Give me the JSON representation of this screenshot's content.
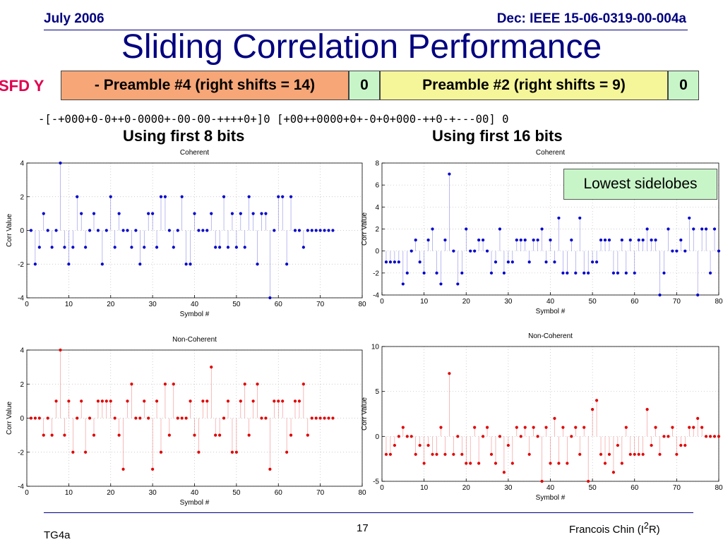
{
  "header": {
    "date": "July 2006",
    "doc": "Dec: IEEE 15-06-0319-00-004a"
  },
  "title": "Sliding Correlation Performance",
  "frame": {
    "sfd_label": "SFD Y",
    "segments": [
      "- Preamble #4 (right shifts = 14)",
      "0",
      "Preamble #2 (right shifts = 9)",
      "0"
    ],
    "sequence": "-[-+000+0-0++0-0000+-00-00-++++0+]0 [+00++0000+0+-0+0+000-++0-+---00] 0"
  },
  "subtitles": {
    "left": "Using first 8 bits",
    "right": "Using first 16 bits"
  },
  "callout": "Lowest sidelobes",
  "footer": {
    "left": "TG4a",
    "page": "17",
    "author_main": "Francois Chin (I",
    "author_sup": "2",
    "author_end": "R)"
  },
  "colors": {
    "coherent": "#0000cc",
    "noncoherent": "#e00000",
    "title": "#000080",
    "sfd": "#e0004f"
  },
  "chart_data": [
    {
      "type": "scatter",
      "title": "Coherent",
      "xlabel": "Symbol #",
      "ylabel": "Corr Value",
      "xlim": [
        0,
        80
      ],
      "ylim": [
        -4,
        4
      ],
      "xticks": [
        0,
        10,
        20,
        30,
        40,
        50,
        60,
        70,
        80
      ],
      "yticks": [
        -4,
        -2,
        0,
        2,
        4
      ],
      "grid": true,
      "x": [
        1,
        2,
        3,
        4,
        5,
        6,
        7,
        8,
        9,
        10,
        11,
        12,
        13,
        14,
        15,
        16,
        17,
        18,
        19,
        20,
        21,
        22,
        23,
        24,
        25,
        26,
        27,
        28,
        29,
        30,
        31,
        32,
        33,
        34,
        35,
        36,
        37,
        38,
        39,
        40,
        41,
        42,
        43,
        44,
        45,
        46,
        47,
        48,
        49,
        50,
        51,
        52,
        53,
        54,
        55,
        56,
        57,
        58,
        59,
        60,
        61,
        62,
        63,
        64,
        65,
        66,
        67,
        68,
        69,
        70,
        71,
        72,
        73
      ],
      "values": [
        0,
        -2,
        -1,
        1,
        0,
        -1,
        0,
        4,
        -1,
        -2,
        -1,
        2,
        1,
        -1,
        0,
        1,
        0,
        -2,
        0,
        2,
        -1,
        1,
        0,
        0,
        -1,
        0,
        -2,
        -1,
        1,
        1,
        -1,
        2,
        2,
        0,
        -1,
        0,
        2,
        -2,
        -2,
        1,
        0,
        0,
        0,
        1,
        -1,
        -1,
        2,
        -1,
        1,
        -1,
        1,
        -1,
        2,
        1,
        -2,
        1,
        1,
        -4,
        0,
        2,
        2,
        -2,
        2,
        0,
        0,
        -1,
        0,
        0,
        0,
        0,
        0,
        0,
        0
      ]
    },
    {
      "type": "scatter",
      "title": "Coherent",
      "xlabel": "Symbol #",
      "ylabel": "Corr Value",
      "xlim": [
        0,
        80
      ],
      "ylim": [
        -4,
        8
      ],
      "xticks": [
        0,
        10,
        20,
        30,
        40,
        50,
        60,
        70,
        80
      ],
      "yticks": [
        -4,
        -2,
        0,
        2,
        4,
        6,
        8
      ],
      "grid": true,
      "x": [
        1,
        2,
        3,
        4,
        5,
        6,
        7,
        8,
        9,
        10,
        11,
        12,
        13,
        14,
        15,
        16,
        17,
        18,
        19,
        20,
        21,
        22,
        23,
        24,
        25,
        26,
        27,
        28,
        29,
        30,
        31,
        32,
        33,
        34,
        35,
        36,
        37,
        38,
        39,
        40,
        41,
        42,
        43,
        44,
        45,
        46,
        47,
        48,
        49,
        50,
        51,
        52,
        53,
        54,
        55,
        56,
        57,
        58,
        59,
        60,
        61,
        62,
        63,
        64,
        65,
        66,
        67,
        68,
        69,
        70,
        71,
        72,
        73,
        74,
        75,
        76,
        77,
        78,
        79,
        80
      ],
      "values": [
        -1,
        -1,
        -1,
        -1,
        -3,
        -2,
        0,
        1,
        -1,
        -2,
        1,
        2,
        -2,
        -3,
        1,
        7,
        0,
        -3,
        -2,
        2,
        0,
        0,
        1,
        1,
        0,
        -2,
        -1,
        2,
        -2,
        -1,
        -1,
        1,
        1,
        1,
        -1,
        1,
        1,
        2,
        -1,
        1,
        -1,
        3,
        -2,
        -2,
        1,
        -2,
        3,
        -2,
        -2,
        -1,
        -1,
        1,
        1,
        1,
        -2,
        -2,
        1,
        -2,
        1,
        -2,
        1,
        1,
        2,
        1,
        1,
        -4,
        -2,
        2,
        0,
        0,
        1,
        0,
        3,
        2,
        -4,
        2,
        2,
        -2,
        2,
        0
      ]
    },
    {
      "type": "scatter",
      "title": "Non-Coherent",
      "xlabel": "Symbol #",
      "ylabel": "Corr Value",
      "xlim": [
        0,
        80
      ],
      "ylim": [
        -4,
        4
      ],
      "xticks": [
        0,
        10,
        20,
        30,
        40,
        50,
        60,
        70,
        80
      ],
      "yticks": [
        -4,
        -2,
        0,
        2,
        4
      ],
      "grid": true,
      "x": [
        1,
        2,
        3,
        4,
        5,
        6,
        7,
        8,
        9,
        10,
        11,
        12,
        13,
        14,
        15,
        16,
        17,
        18,
        19,
        20,
        21,
        22,
        23,
        24,
        25,
        26,
        27,
        28,
        29,
        30,
        31,
        32,
        33,
        34,
        35,
        36,
        37,
        38,
        39,
        40,
        41,
        42,
        43,
        44,
        45,
        46,
        47,
        48,
        49,
        50,
        51,
        52,
        53,
        54,
        55,
        56,
        57,
        58,
        59,
        60,
        61,
        62,
        63,
        64,
        65,
        66,
        67,
        68,
        69,
        70,
        71,
        72,
        73
      ],
      "values": [
        0,
        0,
        0,
        -1,
        0,
        -1,
        1,
        4,
        -1,
        1,
        -2,
        0,
        1,
        -2,
        0,
        -1,
        1,
        1,
        1,
        1,
        0,
        -1,
        -3,
        1,
        2,
        0,
        0,
        1,
        0,
        -3,
        1,
        -2,
        2,
        -1,
        2,
        0,
        0,
        0,
        1,
        -1,
        -2,
        1,
        1,
        3,
        -1,
        -1,
        0,
        1,
        -2,
        -2,
        1,
        2,
        -1,
        1,
        2,
        0,
        0,
        -3,
        1,
        1,
        1,
        -2,
        -1,
        1,
        1,
        2,
        -1,
        0,
        0,
        0,
        0,
        0,
        0
      ]
    },
    {
      "type": "scatter",
      "title": "Non-Coherent",
      "xlabel": "Symbol #",
      "ylabel": "Corr Value",
      "xlim": [
        0,
        80
      ],
      "ylim": [
        -5,
        10
      ],
      "xticks": [
        0,
        10,
        20,
        30,
        40,
        50,
        60,
        70,
        80
      ],
      "yticks": [
        -5,
        0,
        5,
        10
      ],
      "grid": true,
      "x": [
        1,
        2,
        3,
        4,
        5,
        6,
        7,
        8,
        9,
        10,
        11,
        12,
        13,
        14,
        15,
        16,
        17,
        18,
        19,
        20,
        21,
        22,
        23,
        24,
        25,
        26,
        27,
        28,
        29,
        30,
        31,
        32,
        33,
        34,
        35,
        36,
        37,
        38,
        39,
        40,
        41,
        42,
        43,
        44,
        45,
        46,
        47,
        48,
        49,
        50,
        51,
        52,
        53,
        54,
        55,
        56,
        57,
        58,
        59,
        60,
        61,
        62,
        63,
        64,
        65,
        66,
        67,
        68,
        69,
        70,
        71,
        72,
        73,
        74,
        75,
        76,
        77,
        78,
        79,
        80
      ],
      "values": [
        -2,
        -2,
        -1,
        0,
        1,
        0,
        0,
        -2,
        -1,
        -3,
        -1,
        -2,
        -2,
        1,
        -2,
        7,
        -2,
        0,
        -2,
        -3,
        -3,
        1,
        -3,
        0,
        1,
        -2,
        -3,
        0,
        -4,
        -1,
        -3,
        1,
        0,
        1,
        -2,
        1,
        0,
        -5,
        1,
        -3,
        2,
        -3,
        1,
        -3,
        0,
        1,
        -2,
        1,
        -5,
        3,
        4,
        -2,
        -3,
        -2,
        -4,
        -1,
        -3,
        1,
        -2,
        -2,
        -2,
        -2,
        3,
        -1,
        1,
        -2,
        0,
        0,
        1,
        -2,
        -1,
        -1,
        1,
        1,
        2,
        1,
        0,
        0,
        0,
        0
      ]
    }
  ]
}
